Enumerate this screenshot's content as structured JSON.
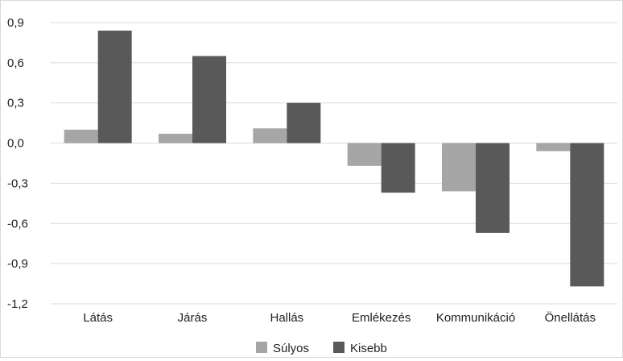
{
  "chart_data": {
    "type": "bar",
    "categories": [
      "Látás",
      "Járás",
      "Hallás",
      "Emlékezés",
      "Kommunikáció",
      "Önellátás"
    ],
    "series": [
      {
        "name": "Súlyos",
        "color": "#a6a6a6",
        "values": [
          0.1,
          0.07,
          0.11,
          -0.17,
          -0.36,
          -0.06
        ]
      },
      {
        "name": "Kisebb",
        "color": "#595959",
        "values": [
          0.84,
          0.65,
          0.3,
          -0.37,
          -0.67,
          -1.07
        ]
      }
    ],
    "ylim": [
      -1.2,
      0.9
    ],
    "yticks": [
      "0,9",
      "0,6",
      "0,3",
      "0,0",
      "-0,3",
      "-0,6",
      "-0,9",
      "-1,2"
    ],
    "ytick_values": [
      0.9,
      0.6,
      0.3,
      0.0,
      -0.3,
      -0.6,
      -0.9,
      -1.2
    ],
    "grid": true,
    "legend_position": "bottom"
  }
}
